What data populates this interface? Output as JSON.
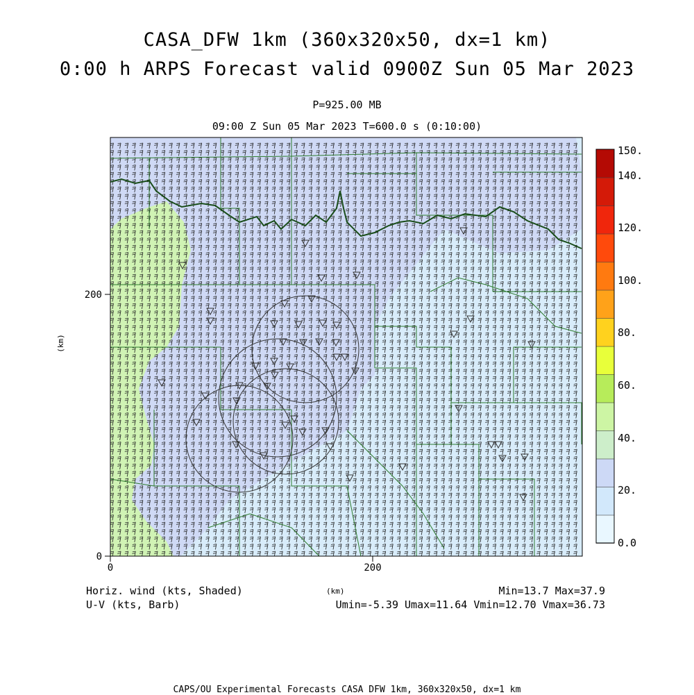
{
  "titles": {
    "line1": "CASA_DFW 1km (360x320x50, dx=1 km)",
    "line2": "0:00 h ARPS Forecast valid 0900Z Sun 05 Mar 2023",
    "level": "P=925.00 MB",
    "time": "09:00 Z Sun 05 Mar 2023    T=600.0 s (0:10:00)"
  },
  "axes": {
    "x_ticks": [
      "0",
      "200"
    ],
    "y_ticks": [
      "0",
      "200"
    ],
    "x_unit": "(km)",
    "y_unit": "(km)"
  },
  "colorbar": {
    "labels": [
      "150.",
      "140.",
      "120.",
      "100.",
      "80.",
      "60.",
      "40.",
      "20.",
      "0.0"
    ],
    "colors": [
      "#e9f7ff",
      "#d2e8fb",
      "#cdd9f6",
      "#cdeeca",
      "#cdf5a4",
      "#b7ec5a",
      "#e8ff3a",
      "#ffd21e",
      "#ffa219",
      "#ff7a10",
      "#ff4a0c",
      "#f0260c",
      "#d41a08",
      "#b40a04"
    ]
  },
  "legend": {
    "shaded": "Horiz. wind (kts, Shaded)",
    "barb": "U-V (kts, Barb)",
    "minmax": "Min=13.7 Max=37.9",
    "components": "Umin=-5.39 Umax=11.64 Vmin=12.70 Vmax=36.73"
  },
  "footer": "CAPS/OU Experimental Forecasts  CASA DFW 1km, 360x320x50, dx=1 km",
  "field_colors": {
    "low": "#d8ecfa",
    "mid": "#cfd9f5",
    "high": "#d0f3b4",
    "state_line": "#1a4d1a",
    "county_line": "#2d7a2d"
  }
}
